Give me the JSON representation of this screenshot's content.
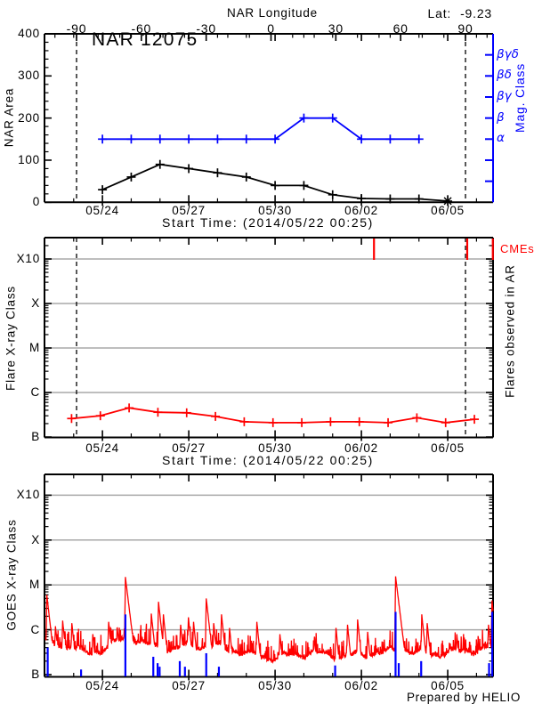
{
  "meta": {
    "lat_label": "Lat:",
    "lat_value": "-9.23",
    "prepared_by": "Prepared by HELIO",
    "colors": {
      "accent_blue": "#0000ff",
      "accent_red": "#ff0000",
      "grid_gray": "#a8a8a8",
      "axis_black": "#000000"
    }
  },
  "chart_data": [
    {
      "id": "area_panel",
      "type": "line",
      "title": "NAR 12075",
      "top_axis": {
        "label": "NAR Longitude",
        "ticks": [
          -90,
          -60,
          -30,
          0,
          30,
          60,
          90
        ],
        "minor_step": 10
      },
      "ylabel": "NAR Area",
      "ylim": [
        0,
        400
      ],
      "yticks": [
        0,
        100,
        200,
        300,
        400
      ],
      "y_minor_step": 20,
      "right_axis": {
        "label": "Mag. Class",
        "tick_labels": [
          "α",
          "β",
          "βγ",
          "βδ",
          "βγδ"
        ],
        "levels": {
          "α": 150,
          "β": 200,
          "βγ": 250,
          "βδ": 300,
          "βγδ": 350
        },
        "all_tick_levels": [
          50,
          100,
          150,
          200,
          250,
          300,
          350
        ],
        "color": "#0000ff"
      },
      "xlabel": "Start Time: (2014/05/22 00:25)",
      "x_major_tick_labels": [
        "05/24",
        "05/27",
        "05/30",
        "06/02",
        "06/05"
      ],
      "x_major_days": [
        1.983,
        4.983,
        7.983,
        10.983,
        13.983
      ],
      "x_minor_first_day": 0.983,
      "x_minor_step_days": 1,
      "x_range_days": [
        0,
        15.56
      ],
      "limb_crossing_days": [
        1.083,
        14.6
      ],
      "series": [
        {
          "name": "nar-area",
          "color": "#000000",
          "marker": "plus",
          "end_marker": "asterisk",
          "points": [
            [
              1.983,
              30
            ],
            [
              2.983,
              60
            ],
            [
              3.983,
              90
            ],
            [
              4.983,
              80
            ],
            [
              5.983,
              70
            ],
            [
              6.983,
              60
            ],
            [
              7.983,
              40
            ],
            [
              8.983,
              40
            ],
            [
              9.983,
              18
            ],
            [
              10.983,
              9
            ],
            [
              11.983,
              8
            ],
            [
              12.983,
              8
            ],
            [
              13.983,
              3
            ]
          ]
        },
        {
          "name": "mag-class",
          "color": "#0000ff",
          "marker": "plus",
          "classes": [
            [
              1.983,
              "α"
            ],
            [
              2.983,
              "α"
            ],
            [
              3.983,
              "α"
            ],
            [
              4.983,
              "α"
            ],
            [
              5.983,
              "α"
            ],
            [
              6.983,
              "α"
            ],
            [
              7.983,
              "α"
            ],
            [
              8.983,
              "β"
            ],
            [
              9.983,
              "β"
            ],
            [
              10.983,
              "α"
            ],
            [
              11.983,
              "α"
            ],
            [
              12.983,
              "α"
            ]
          ]
        }
      ]
    },
    {
      "id": "flare_panel",
      "type": "line",
      "ylabel": "Flare X-ray Class",
      "right_label": "Flares observed in AR",
      "cme_label": "CMEs",
      "ytick_labels": [
        "B",
        "C",
        "M",
        "X",
        "X10"
      ],
      "ytick_flux": [
        1e-07,
        1e-06,
        1e-05,
        0.0001,
        0.001
      ],
      "gridlines_at": [
        "C",
        "M",
        "X",
        "X10"
      ],
      "xlabel": "Start Time: (2014/05/22 00:25)",
      "x_major_tick_labels": [
        "05/24",
        "05/27",
        "05/30",
        "06/02",
        "06/05"
      ],
      "x_major_days": [
        1.983,
        4.983,
        7.983,
        10.983,
        13.983
      ],
      "x_minor_first_day": 0.983,
      "x_minor_step_days": 1,
      "limb_crossing_days": [
        1.083,
        14.6
      ],
      "cme_marks_days": [
        11.42,
        14.66,
        15.55
      ],
      "series": [
        {
          "name": "flare-xray-class",
          "color": "#ff0000",
          "marker": "plus",
          "points": [
            [
              0.91,
              2.6e-07
            ],
            [
              1.91,
              3e-07
            ],
            [
              2.91,
              4.5e-07
            ],
            [
              3.91,
              3.6e-07
            ],
            [
              4.91,
              3.5e-07
            ],
            [
              5.91,
              2.9e-07
            ],
            [
              6.91,
              2.2e-07
            ],
            [
              7.91,
              2.1e-07
            ],
            [
              8.91,
              2.1e-07
            ],
            [
              9.91,
              2.2e-07
            ],
            [
              10.91,
              2.2e-07
            ],
            [
              11.91,
              2.1e-07
            ],
            [
              12.91,
              2.7e-07
            ],
            [
              13.91,
              2.1e-07
            ],
            [
              14.91,
              2.5e-07
            ]
          ]
        }
      ]
    },
    {
      "id": "goes_panel",
      "type": "line",
      "ylabel": "GOES X-ray Class",
      "ytick_labels": [
        "B",
        "C",
        "M",
        "X",
        "X10"
      ],
      "ytick_flux": [
        1e-07,
        1e-06,
        1e-05,
        0.0001,
        0.001
      ],
      "gridlines_at": [
        "C",
        "M",
        "X",
        "X10"
      ],
      "x_major_tick_labels": [
        "05/24",
        "05/27",
        "05/30",
        "06/02",
        "06/05"
      ],
      "x_major_days": [
        1.983,
        4.983,
        7.983,
        10.983,
        13.983
      ],
      "x_minor_first_day": 0.983,
      "x_minor_step_days": 1,
      "goes_curve": {
        "color": "#ff0000",
        "background_flux": [
          [
            0,
            5e-07
          ],
          [
            0.5,
            4.2e-07
          ],
          [
            1.4,
            3.2e-07
          ],
          [
            2.2,
            4.5e-07
          ],
          [
            2.7,
            6.5e-07
          ],
          [
            3.1,
            5.5e-07
          ],
          [
            3.5,
            4.2e-07
          ],
          [
            4.3,
            3.8e-07
          ],
          [
            5.0,
            5.2e-07
          ],
          [
            5.6,
            4.2e-07
          ],
          [
            6.2,
            3.6e-07
          ],
          [
            7.0,
            3e-07
          ],
          [
            7.8,
            2.7e-07
          ],
          [
            9.0,
            2.6e-07
          ],
          [
            10.2,
            2.9e-07
          ],
          [
            11.0,
            3.1e-07
          ],
          [
            11.9,
            2.9e-07
          ],
          [
            12.4,
            3.6e-07
          ],
          [
            13.1,
            3.1e-07
          ],
          [
            13.9,
            3.4e-07
          ],
          [
            14.6,
            3e-07
          ],
          [
            15.1,
            3.3e-07
          ],
          [
            15.56,
            4.2e-07
          ]
        ],
        "flare_spikes": [
          [
            0.05,
            6e-06
          ],
          [
            0.35,
            1.2e-06
          ],
          [
            0.6,
            1.6e-06
          ],
          [
            0.92,
            1.4e-06
          ],
          [
            1.65,
            8e-07
          ],
          [
            2.2,
            1.5e-06
          ],
          [
            2.5,
            1.1e-06
          ],
          [
            2.78,
            1.5e-05
          ],
          [
            2.92,
            2e-06
          ],
          [
            3.68,
            2.3e-06
          ],
          [
            3.93,
            4.2e-06
          ],
          [
            4.1,
            2.2e-06
          ],
          [
            4.7,
            1.3e-06
          ],
          [
            4.97,
            1.9e-06
          ],
          [
            5.15,
            1.5e-06
          ],
          [
            5.59,
            5e-06
          ],
          [
            5.85,
            1.4e-06
          ],
          [
            6.12,
            2.2e-06
          ],
          [
            6.4,
            1.1e-06
          ],
          [
            7.35,
            1.5e-06
          ],
          [
            8.15,
            8e-07
          ],
          [
            9.35,
            7e-07
          ],
          [
            10.1,
            1.1e-06
          ],
          [
            10.5,
            1.3e-06
          ],
          [
            10.85,
            1.7e-06
          ],
          [
            11.2,
            9e-07
          ],
          [
            12.17,
            1.55e-05
          ],
          [
            12.3,
            2.5e-06
          ],
          [
            13.08,
            2.2e-06
          ],
          [
            13.27,
            1.4e-06
          ],
          [
            14.3,
            8e-07
          ],
          [
            15.4,
            1.3e-06
          ],
          [
            15.52,
            4.5e-06
          ]
        ]
      },
      "event_bars": {
        "color": "#0000ff",
        "bars": [
          [
            0.08,
            4e-07
          ],
          [
            1.24,
            1.3e-07
          ],
          [
            2.78,
            2.2e-06
          ],
          [
            3.75,
            2.5e-07
          ],
          [
            3.9,
            1.8e-07
          ],
          [
            3.97,
            1.5e-07
          ],
          [
            4.67,
            2e-07
          ],
          [
            4.85,
            1.5e-07
          ],
          [
            5.59,
            3e-07
          ],
          [
            6.03,
            1.5e-07
          ],
          [
            10.07,
            1.6e-07
          ],
          [
            12.17,
            2.5e-06
          ],
          [
            12.28,
            1.8e-07
          ],
          [
            13.06,
            2e-07
          ],
          [
            15.42,
            1.8e-07
          ],
          [
            15.53,
            2.5e-06
          ]
        ]
      }
    }
  ]
}
